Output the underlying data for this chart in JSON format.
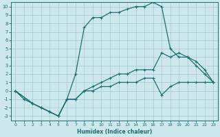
{
  "xlabel": "Humidex (Indice chaleur)",
  "bg_color": "#cce8ec",
  "grid_color": "#aacdd4",
  "line_color": "#1a6e6e",
  "xlim": [
    -0.5,
    23.5
  ],
  "ylim": [
    -3.5,
    10.5
  ],
  "xticks": [
    0,
    1,
    2,
    3,
    4,
    5,
    6,
    7,
    8,
    9,
    10,
    11,
    12,
    13,
    14,
    15,
    16,
    17,
    18,
    19,
    20,
    21,
    22,
    23
  ],
  "yticks": [
    -3,
    -2,
    -1,
    0,
    1,
    2,
    3,
    4,
    5,
    6,
    7,
    8,
    9,
    10
  ],
  "line1_x": [
    0,
    1,
    2,
    3,
    4,
    5,
    6,
    7,
    8,
    9,
    10,
    11,
    12,
    13,
    14,
    15,
    16,
    17,
    18,
    19,
    20,
    21,
    22,
    23
  ],
  "line1_y": [
    0,
    -1,
    -1.5,
    -2,
    -2.5,
    -3,
    -1,
    2,
    7.5,
    8.7,
    8.7,
    9.3,
    9.3,
    9.7,
    10,
    10,
    10.5,
    10,
    5,
    4,
    4,
    3,
    2,
    1
  ],
  "line2_x": [
    0,
    2,
    3,
    4,
    5,
    6,
    7,
    8,
    9,
    10,
    11,
    12,
    13,
    14,
    15,
    16,
    17,
    18,
    19,
    20,
    21,
    22,
    23
  ],
  "line2_y": [
    0,
    -1.5,
    -2,
    -2.5,
    -3,
    -1,
    -1,
    0,
    0.5,
    1,
    1.5,
    2,
    2,
    2.5,
    2.5,
    2.5,
    4.5,
    4,
    4.5,
    4,
    3.5,
    2.5,
    1
  ],
  "line3_x": [
    0,
    2,
    3,
    4,
    5,
    6,
    7,
    8,
    9,
    10,
    11,
    12,
    13,
    14,
    15,
    16,
    17,
    18,
    19,
    20,
    21,
    22,
    23
  ],
  "line3_y": [
    0,
    -1.5,
    -2,
    -2.5,
    -3,
    -1,
    -1,
    0,
    0,
    0.5,
    0.5,
    1,
    1,
    1,
    1.5,
    1.5,
    -0.5,
    0.5,
    1,
    1,
    1,
    1,
    1
  ]
}
